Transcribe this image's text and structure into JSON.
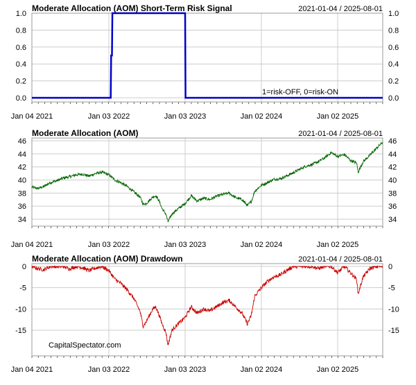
{
  "chart_data": [
    {
      "type": "line",
      "title": "Moderate Allocation (AOM) Short-Term Risk Signal",
      "date_range": "2021-01-04 / 2025-08-01",
      "annotation": "1=risk-OFF, 0=risk-ON",
      "x_tick_labels": [
        "Jan 04 2021",
        "Jan 03 2022",
        "Jan 03 2023",
        "Jan 02 2024",
        "Jan 02 2025"
      ],
      "y_tick_labels": [
        "0.0",
        "0.2",
        "0.4",
        "0.6",
        "0.8",
        "1.0"
      ],
      "ylim": [
        0,
        1
      ],
      "line_color": "#0000cc",
      "grid": true,
      "series": [
        {
          "x": [
            "2021-01-04",
            "2022-01-12",
            "2022-01-14",
            "2022-01-18",
            "2022-01-20",
            "2023-01-03",
            "2023-01-05",
            "2025-08-01"
          ],
          "y": [
            0,
            0,
            0.5,
            0.5,
            1,
            1,
            0,
            0
          ]
        }
      ]
    },
    {
      "type": "line",
      "title": "Moderate Allocation (AOM)",
      "date_range": "2021-01-04 / 2025-08-01",
      "x_tick_labels": [
        "Jan 04 2021",
        "Jan 03 2022",
        "Jan 03 2023",
        "Jan 02 2024",
        "Jan 02 2025"
      ],
      "y_tick_labels": [
        "34",
        "36",
        "38",
        "40",
        "42",
        "44",
        "46"
      ],
      "ylim": [
        33,
        46
      ],
      "line_color": "#006400",
      "grid": true,
      "series": [
        {
          "x": [
            "2021-01-04",
            "2021-02-01",
            "2021-03-01",
            "2021-04-01",
            "2021-05-03",
            "2021-06-01",
            "2021-07-01",
            "2021-08-02",
            "2021-09-01",
            "2021-10-01",
            "2021-11-01",
            "2021-12-01",
            "2022-01-03",
            "2022-02-01",
            "2022-03-01",
            "2022-04-01",
            "2022-05-02",
            "2022-06-01",
            "2022-06-16",
            "2022-07-01",
            "2022-08-01",
            "2022-08-16",
            "2022-09-01",
            "2022-09-15",
            "2022-10-03",
            "2022-10-13",
            "2022-11-01",
            "2022-12-01",
            "2023-01-03",
            "2023-02-01",
            "2023-03-01",
            "2023-04-03",
            "2023-05-01",
            "2023-06-01",
            "2023-07-03",
            "2023-08-01",
            "2023-09-01",
            "2023-10-02",
            "2023-10-27",
            "2023-11-15",
            "2023-12-01",
            "2024-01-02",
            "2024-02-01",
            "2024-03-01",
            "2024-04-01",
            "2024-05-01",
            "2024-06-03",
            "2024-07-01",
            "2024-08-01",
            "2024-09-03",
            "2024-10-01",
            "2024-11-01",
            "2024-12-02",
            "2025-01-02",
            "2025-02-03",
            "2025-03-03",
            "2025-04-01",
            "2025-04-08",
            "2025-05-01",
            "2025-06-02",
            "2025-07-01",
            "2025-08-01"
          ],
          "y": [
            38.9,
            38.7,
            39.0,
            39.6,
            39.9,
            40.3,
            40.5,
            40.8,
            40.9,
            40.6,
            41.0,
            41.2,
            40.8,
            40.0,
            39.6,
            39.0,
            38.2,
            37.4,
            36.3,
            36.4,
            37.4,
            37.6,
            36.8,
            35.6,
            34.8,
            33.6,
            34.8,
            35.6,
            36.4,
            37.6,
            36.8,
            37.2,
            37.0,
            37.5,
            37.8,
            38.0,
            37.3,
            37.0,
            36.1,
            36.7,
            38.3,
            39.2,
            39.6,
            40.1,
            40.2,
            40.6,
            41.1,
            41.6,
            42.1,
            42.4,
            42.8,
            43.4,
            44.2,
            43.6,
            43.9,
            43.0,
            42.6,
            41.2,
            42.8,
            43.8,
            44.8,
            45.8
          ]
        }
      ]
    },
    {
      "type": "line",
      "title": "Moderate Allocation (AOM) Drawdown",
      "date_range": "2021-01-04 / 2025-08-01",
      "watermark": "CapitalSpectator.com",
      "x_tick_labels": [
        "Jan 04 2021",
        "Jan 03 2022",
        "Jan 03 2023",
        "Jan 02 2024",
        "Jan 02 2025"
      ],
      "y_tick_labels": [
        "-15",
        "-10",
        "-5",
        "0"
      ],
      "ylim": [
        -19.5,
        0
      ],
      "line_color": "#cc0000",
      "grid": true,
      "series": [
        {
          "x": [
            "2021-01-04",
            "2021-02-01",
            "2021-03-01",
            "2021-04-01",
            "2021-05-03",
            "2021-06-01",
            "2021-07-01",
            "2021-08-02",
            "2021-09-01",
            "2021-10-01",
            "2021-11-01",
            "2021-12-01",
            "2022-01-03",
            "2022-02-01",
            "2022-03-01",
            "2022-04-01",
            "2022-05-02",
            "2022-06-01",
            "2022-06-16",
            "2022-07-01",
            "2022-08-01",
            "2022-08-16",
            "2022-09-01",
            "2022-09-15",
            "2022-10-03",
            "2022-10-13",
            "2022-11-01",
            "2022-12-01",
            "2023-01-03",
            "2023-02-01",
            "2023-03-01",
            "2023-04-03",
            "2023-05-01",
            "2023-06-01",
            "2023-07-03",
            "2023-08-01",
            "2023-09-01",
            "2023-10-02",
            "2023-10-27",
            "2023-11-15",
            "2023-12-01",
            "2024-01-02",
            "2024-02-01",
            "2024-03-01",
            "2024-04-01",
            "2024-05-01",
            "2024-06-03",
            "2024-07-01",
            "2024-08-01",
            "2024-09-03",
            "2024-10-01",
            "2024-11-01",
            "2024-12-02",
            "2025-01-02",
            "2025-02-03",
            "2025-03-03",
            "2025-04-01",
            "2025-04-08",
            "2025-05-01",
            "2025-06-02",
            "2025-07-01",
            "2025-08-01"
          ],
          "y": [
            0,
            -0.5,
            -0.8,
            0,
            0,
            0,
            -0.6,
            0,
            -0.3,
            -1.0,
            -0.4,
            0,
            -1.0,
            -3.0,
            -4.0,
            -5.5,
            -7.5,
            -10.5,
            -14.0,
            -13.0,
            -10.0,
            -9.5,
            -11.5,
            -13.5,
            -15.5,
            -18.5,
            -15.0,
            -13.5,
            -12.0,
            -9.5,
            -11.0,
            -10.0,
            -10.5,
            -9.5,
            -8.5,
            -8.0,
            -9.5,
            -11.0,
            -13.5,
            -11.5,
            -7.0,
            -5.0,
            -3.5,
            -2.5,
            -2.0,
            -1.0,
            0,
            0,
            0,
            0,
            -0.5,
            0,
            0,
            -1.5,
            0,
            -1.5,
            -3.0,
            -6.5,
            -2.5,
            -0.5,
            0,
            0
          ]
        }
      ]
    }
  ]
}
